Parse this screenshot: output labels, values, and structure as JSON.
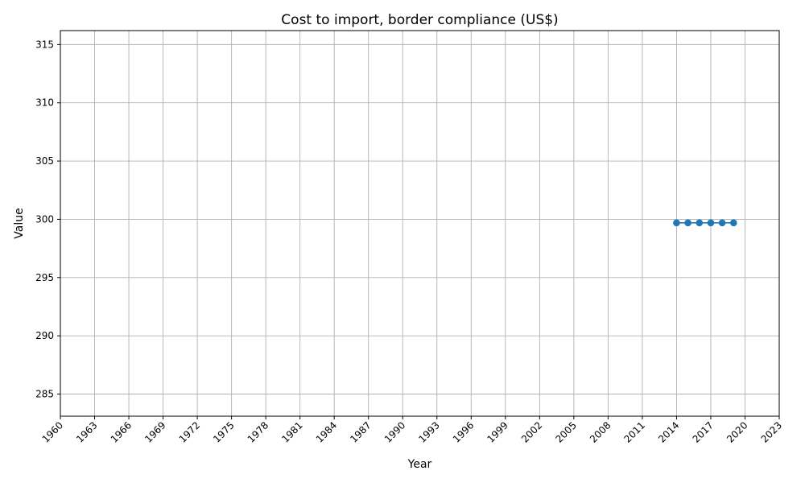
{
  "chart_data": {
    "type": "line",
    "title": "Cost to import, border compliance (US$)",
    "xlabel": "Year",
    "ylabel": "Value",
    "xlim": [
      1960,
      2023
    ],
    "ylim": [
      283.1,
      316.2
    ],
    "x_ticks": [
      1960,
      1963,
      1966,
      1969,
      1972,
      1975,
      1978,
      1981,
      1984,
      1987,
      1990,
      1993,
      1996,
      1999,
      2002,
      2005,
      2008,
      2011,
      2014,
      2017,
      2020,
      2023
    ],
    "y_ticks": [
      285,
      290,
      295,
      300,
      305,
      310,
      315
    ],
    "grid": true,
    "series": [
      {
        "color": "#1f77b4",
        "x": [
          2014,
          2015,
          2016,
          2017,
          2018,
          2019
        ],
        "y": [
          299.7,
          299.7,
          299.7,
          299.7,
          299.7,
          299.7
        ]
      }
    ]
  }
}
